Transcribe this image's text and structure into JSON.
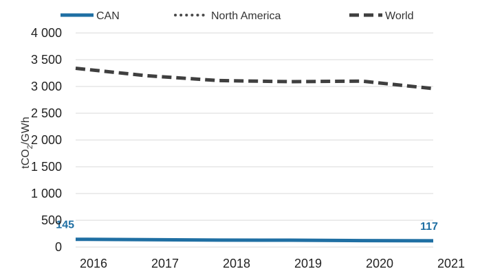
{
  "chart_data": {
    "type": "line",
    "title": "",
    "xlabel": "",
    "ylabel": "tCO2/GWh",
    "ylabel_main": "tCO",
    "ylabel_sub": "2",
    "ylabel_rest": "/GWh",
    "x": [
      "2016",
      "2017",
      "2018",
      "2019",
      "2020",
      "2021"
    ],
    "ylim": [
      0,
      4000
    ],
    "yticks": [
      0,
      500,
      1000,
      1500,
      2000,
      2500,
      3000,
      3500,
      4000
    ],
    "ytick_labels": [
      "0",
      "500",
      "1 000",
      "1 500",
      "2 000",
      "2 500",
      "3 000",
      "3 500",
      "4 000"
    ],
    "grid": true,
    "legend_position": "top",
    "series": [
      {
        "name": "CAN",
        "style": "solid",
        "color": "#1f6fa3",
        "values": [
          145,
          138,
          130,
          128,
          120,
          117
        ],
        "data_labels": [
          {
            "index": 0,
            "text": "145"
          },
          {
            "index": 5,
            "text": "117"
          }
        ]
      },
      {
        "name": "North America",
        "style": "dotted",
        "color": "#4a4a4a",
        "values": [
          null,
          null,
          null,
          null,
          null,
          null
        ]
      },
      {
        "name": "World",
        "style": "dashed",
        "color": "#3f3f3f",
        "values": [
          3340,
          3200,
          3110,
          3090,
          3100,
          2960
        ]
      }
    ]
  }
}
